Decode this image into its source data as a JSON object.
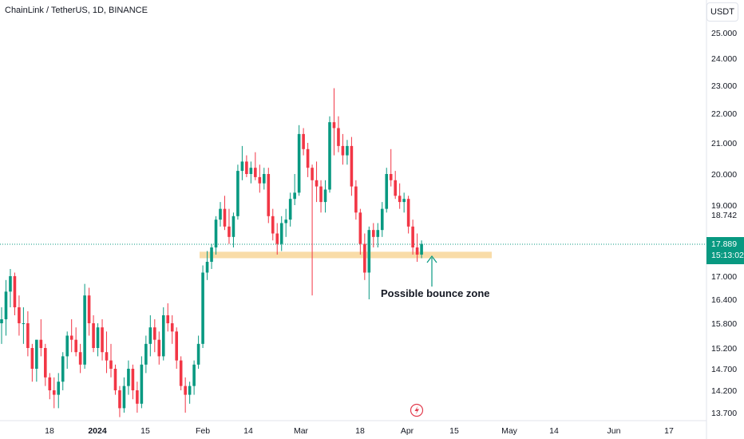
{
  "title": "ChainLink / TetherUS, 1D, BINANCE",
  "currency": "USDT",
  "colors": {
    "up": "#089981",
    "down": "#f23645",
    "zone": "#f8d89e",
    "price_line": "#089981",
    "arrow": "#089981",
    "flash": "#e23d4f"
  },
  "chart_data": {
    "type": "candlestick",
    "ylim": [
      13.4,
      25.5
    ],
    "y_ticks": [
      "25.000",
      "24.000",
      "23.000",
      "22.000",
      "21.000",
      "20.000",
      "19.000",
      "17.000",
      "16.400",
      "15.800",
      "15.200",
      "14.700",
      "14.200",
      "13.700"
    ],
    "price_labels": {
      "level": "18.742",
      "last_price": "17.889",
      "countdown": "15:13:02"
    },
    "x_ticks": [
      "18",
      "2024",
      "15",
      "Feb",
      "14",
      "Mar",
      "18",
      "Apr",
      "15",
      "May",
      "14",
      "Jun",
      "17"
    ],
    "zone": {
      "low": 17.5,
      "high": 17.68
    },
    "annotation": "Possible bounce zone",
    "candles": [
      [
        15.8,
        16.2,
        15.3,
        15.9
      ],
      [
        15.9,
        16.9,
        15.5,
        16.6
      ],
      [
        16.6,
        17.2,
        16.2,
        17.0
      ],
      [
        17.0,
        17.1,
        16.0,
        16.2
      ],
      [
        16.2,
        16.5,
        15.5,
        15.8
      ],
      [
        15.8,
        16.2,
        15.3,
        15.8
      ],
      [
        15.8,
        16.1,
        15.0,
        15.2
      ],
      [
        15.2,
        15.3,
        14.4,
        14.7
      ],
      [
        14.7,
        15.4,
        14.4,
        15.4
      ],
      [
        15.4,
        15.9,
        15.0,
        15.2
      ],
      [
        15.2,
        15.3,
        14.3,
        14.5
      ],
      [
        14.5,
        14.6,
        14.0,
        14.2
      ],
      [
        14.2,
        14.5,
        13.8,
        14.1
      ],
      [
        14.1,
        14.6,
        13.8,
        14.4
      ],
      [
        14.4,
        15.1,
        14.2,
        15.0
      ],
      [
        15.0,
        15.6,
        14.7,
        15.5
      ],
      [
        15.5,
        15.9,
        15.1,
        15.4
      ],
      [
        15.4,
        15.7,
        15.0,
        15.1
      ],
      [
        15.1,
        15.3,
        14.6,
        14.8
      ],
      [
        14.8,
        16.8,
        14.7,
        16.5
      ],
      [
        16.5,
        16.7,
        15.5,
        15.8
      ],
      [
        15.8,
        16.0,
        15.1,
        15.2
      ],
      [
        15.2,
        15.8,
        15.0,
        15.7
      ],
      [
        15.7,
        15.9,
        14.9,
        15.1
      ],
      [
        15.1,
        15.6,
        14.6,
        14.9
      ],
      [
        14.9,
        15.3,
        14.5,
        14.7
      ],
      [
        14.7,
        14.8,
        14.1,
        14.2
      ],
      [
        14.2,
        14.3,
        13.6,
        13.8
      ],
      [
        13.8,
        14.5,
        13.7,
        14.3
      ],
      [
        14.3,
        14.9,
        14.1,
        14.7
      ],
      [
        14.7,
        14.8,
        14.0,
        14.2
      ],
      [
        14.2,
        14.4,
        13.7,
        13.9
      ],
      [
        13.9,
        15.0,
        13.8,
        14.8
      ],
      [
        14.8,
        15.5,
        14.6,
        15.3
      ],
      [
        15.3,
        16.0,
        15.0,
        15.7
      ],
      [
        15.7,
        15.9,
        15.1,
        15.4
      ],
      [
        15.4,
        15.6,
        14.8,
        15.0
      ],
      [
        15.0,
        16.2,
        14.9,
        16.0
      ],
      [
        16.0,
        16.3,
        15.6,
        15.8
      ],
      [
        15.8,
        16.0,
        15.3,
        15.6
      ],
      [
        15.6,
        15.7,
        14.7,
        14.9
      ],
      [
        14.9,
        15.0,
        14.2,
        14.3
      ],
      [
        14.3,
        14.5,
        13.7,
        14.1
      ],
      [
        14.1,
        14.4,
        13.9,
        14.3
      ],
      [
        14.3,
        14.9,
        14.1,
        14.8
      ],
      [
        14.8,
        15.5,
        14.7,
        15.3
      ],
      [
        15.3,
        17.3,
        15.2,
        17.1
      ],
      [
        17.1,
        17.7,
        16.9,
        17.4
      ],
      [
        17.4,
        17.9,
        17.2,
        17.8
      ],
      [
        17.8,
        18.7,
        17.6,
        18.6
      ],
      [
        18.6,
        19.1,
        18.4,
        18.9
      ],
      [
        18.9,
        19.3,
        18.3,
        18.4
      ],
      [
        18.4,
        18.9,
        17.9,
        18.1
      ],
      [
        18.1,
        18.8,
        17.8,
        18.7
      ],
      [
        18.7,
        20.3,
        18.6,
        20.1
      ],
      [
        20.1,
        20.9,
        19.8,
        20.4
      ],
      [
        20.4,
        20.6,
        19.9,
        20.0
      ],
      [
        20.0,
        20.4,
        19.7,
        20.2
      ],
      [
        20.2,
        20.7,
        19.8,
        19.9
      ],
      [
        19.9,
        20.3,
        19.4,
        19.7
      ],
      [
        19.7,
        20.2,
        19.5,
        20.0
      ],
      [
        20.0,
        20.2,
        18.5,
        18.7
      ],
      [
        18.7,
        18.9,
        18.0,
        18.2
      ],
      [
        18.2,
        18.5,
        17.6,
        17.9
      ],
      [
        17.9,
        18.7,
        17.7,
        18.5
      ],
      [
        18.5,
        18.9,
        18.1,
        18.6
      ],
      [
        18.6,
        19.4,
        18.4,
        19.2
      ],
      [
        19.2,
        20.0,
        19.0,
        19.4
      ],
      [
        19.4,
        21.6,
        19.3,
        21.3
      ],
      [
        21.3,
        21.5,
        20.6,
        20.8
      ],
      [
        20.8,
        21.0,
        19.9,
        20.2
      ],
      [
        20.2,
        20.3,
        16.5,
        19.8
      ],
      [
        19.8,
        20.4,
        19.1,
        19.6
      ],
      [
        19.6,
        19.8,
        18.8,
        19.1
      ],
      [
        19.1,
        19.8,
        18.8,
        19.5
      ],
      [
        19.5,
        21.9,
        19.4,
        21.7
      ],
      [
        21.7,
        22.9,
        20.6,
        21.5
      ],
      [
        21.5,
        21.9,
        20.7,
        20.9
      ],
      [
        20.9,
        21.3,
        20.3,
        20.6
      ],
      [
        20.6,
        21.1,
        20.3,
        20.9
      ],
      [
        20.9,
        21.2,
        19.3,
        19.6
      ],
      [
        19.6,
        19.8,
        18.6,
        18.8
      ],
      [
        18.8,
        18.9,
        17.6,
        17.9
      ],
      [
        17.9,
        18.2,
        16.9,
        17.1
      ],
      [
        17.1,
        18.4,
        16.4,
        18.3
      ],
      [
        18.3,
        18.5,
        17.8,
        18.1
      ],
      [
        18.1,
        18.5,
        17.8,
        18.3
      ],
      [
        18.3,
        19.1,
        18.1,
        18.9
      ],
      [
        18.9,
        20.2,
        18.8,
        20.0
      ],
      [
        20.0,
        20.8,
        19.6,
        19.8
      ],
      [
        19.8,
        20.1,
        19.2,
        19.3
      ],
      [
        19.3,
        19.7,
        18.9,
        19.1
      ],
      [
        19.1,
        19.4,
        18.8,
        19.2
      ],
      [
        19.2,
        19.3,
        18.2,
        18.4
      ],
      [
        18.4,
        18.6,
        17.6,
        17.8
      ],
      [
        17.8,
        18.2,
        17.4,
        17.6
      ],
      [
        17.6,
        18.0,
        17.5,
        17.9
      ]
    ]
  }
}
